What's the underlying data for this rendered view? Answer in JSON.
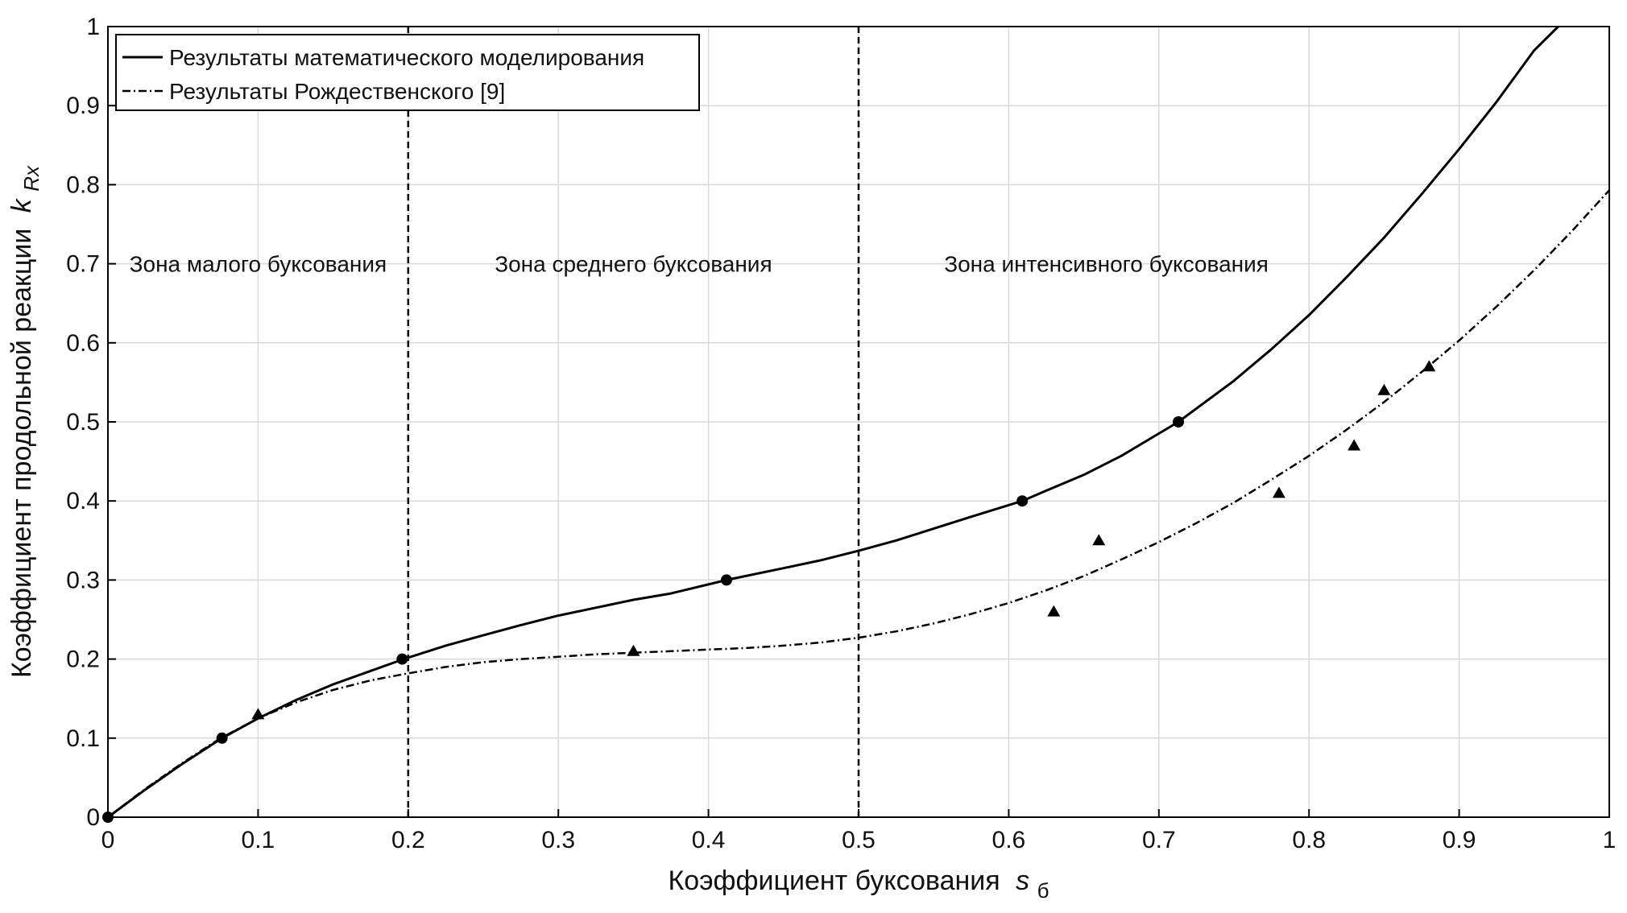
{
  "chart_data": {
    "type": "line",
    "xlabel": "Коэффициент буксования",
    "xlabel_symbol": "s",
    "xlabel_subscript": "б",
    "ylabel": "Коэффициент продольной реакции",
    "ylabel_symbol": "k",
    "ylabel_subscript": "Rx",
    "xlim": [
      0,
      1
    ],
    "ylim": [
      0,
      1
    ],
    "x_ticks": [
      "0",
      "0.1",
      "0.2",
      "0.3",
      "0.4",
      "0.5",
      "0.6",
      "0.7",
      "0.8",
      "0.9",
      "1"
    ],
    "y_ticks": [
      "0",
      "0.1",
      "0.2",
      "0.3",
      "0.4",
      "0.5",
      "0.6",
      "0.7",
      "0.8",
      "0.9",
      "1"
    ],
    "grid": true,
    "legend_position": "top-left",
    "zone_boundaries": [
      0.2,
      0.5
    ],
    "zones": [
      {
        "label": "Зона малого буксования",
        "x": 0.1,
        "y": 0.7
      },
      {
        "label": "Зона среднего буксования",
        "x": 0.35,
        "y": 0.7
      },
      {
        "label": "Зона интенсивного буксования",
        "x": 0.665,
        "y": 0.7
      }
    ],
    "series": [
      {
        "name": "Результаты математического моделирования",
        "style": "solid",
        "color": "#000000",
        "x": [
          0,
          0.025,
          0.05,
          0.076,
          0.1,
          0.125,
          0.15,
          0.175,
          0.197,
          0.225,
          0.25,
          0.275,
          0.3,
          0.325,
          0.35,
          0.375,
          0.412,
          0.45,
          0.475,
          0.5,
          0.525,
          0.55,
          0.575,
          0.609,
          0.625,
          0.65,
          0.675,
          0.713,
          0.75,
          0.775,
          0.8,
          0.825,
          0.85,
          0.875,
          0.9,
          0.925,
          0.95,
          0.966
        ],
        "y": [
          0,
          0.035,
          0.068,
          0.1,
          0.125,
          0.148,
          0.168,
          0.185,
          0.2,
          0.217,
          0.23,
          0.243,
          0.255,
          0.265,
          0.275,
          0.283,
          0.3,
          0.315,
          0.325,
          0.337,
          0.35,
          0.365,
          0.38,
          0.4,
          0.413,
          0.433,
          0.457,
          0.5,
          0.552,
          0.592,
          0.635,
          0.683,
          0.733,
          0.788,
          0.845,
          0.905,
          0.97,
          1.0
        ]
      },
      {
        "name": "Результаты Рождественского [9]",
        "style": "dash-dot",
        "color": "#000000",
        "x": [
          0,
          0.025,
          0.05,
          0.075,
          0.1,
          0.125,
          0.15,
          0.175,
          0.2,
          0.225,
          0.25,
          0.275,
          0.3,
          0.325,
          0.35,
          0.375,
          0.4,
          0.425,
          0.45,
          0.475,
          0.5,
          0.525,
          0.55,
          0.575,
          0.6,
          0.625,
          0.65,
          0.675,
          0.7,
          0.725,
          0.75,
          0.775,
          0.8,
          0.825,
          0.85,
          0.875,
          0.9,
          0.925,
          0.95,
          0.975,
          1.0
        ],
        "y": [
          0,
          0.036,
          0.069,
          0.1,
          0.125,
          0.145,
          0.161,
          0.173,
          0.182,
          0.19,
          0.196,
          0.2,
          0.203,
          0.206,
          0.208,
          0.21,
          0.212,
          0.214,
          0.217,
          0.221,
          0.227,
          0.235,
          0.245,
          0.257,
          0.271,
          0.287,
          0.305,
          0.326,
          0.348,
          0.372,
          0.398,
          0.427,
          0.457,
          0.49,
          0.525,
          0.563,
          0.603,
          0.646,
          0.692,
          0.741,
          0.793
        ]
      }
    ],
    "circle_markers": {
      "x": [
        0,
        0.076,
        0.196,
        0.412,
        0.609,
        0.713
      ],
      "y": [
        0,
        0.1,
        0.2,
        0.3,
        0.4,
        0.5
      ]
    },
    "triangle_markers": {
      "x": [
        0.1,
        0.35,
        0.63,
        0.66,
        0.78,
        0.83,
        0.85,
        0.88
      ],
      "y": [
        0.13,
        0.21,
        0.26,
        0.35,
        0.41,
        0.47,
        0.54,
        0.57
      ]
    }
  }
}
